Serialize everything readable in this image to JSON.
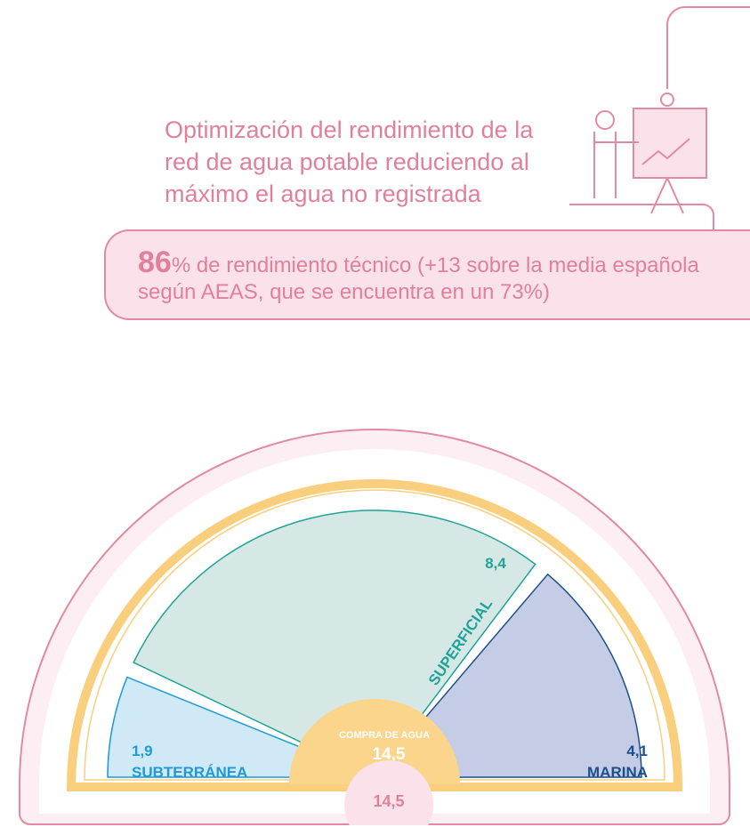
{
  "header": {
    "text": "Optimización del rendimiento de la red de agua potable reduciendo al máximo el agua no registrada"
  },
  "highlight": {
    "number": "86",
    "text": "% de rendimiento técnico (+13 sobre la media española según AEAS, que se encuentra en un 73%)"
  },
  "chart_data": {
    "type": "pie",
    "categories": [
      "SUBTERRÁNEA",
      "SUPERFICIAL",
      "MARINA"
    ],
    "values": [
      1.9,
      8.4,
      4.1
    ],
    "value_labels": [
      "1,9",
      "8,4",
      "4,1"
    ],
    "colors": [
      "#cfe9f7",
      "#d6e8e6",
      "#c4cde5"
    ],
    "label_colors": [
      "#1f9ad6",
      "#1fa396",
      "#1d4f8c"
    ],
    "center": {
      "label": "COMPRA DE AGUA",
      "value": 14.5,
      "value_label": "14,5"
    },
    "total": {
      "value": 14.5,
      "value_label": "14,5"
    }
  }
}
